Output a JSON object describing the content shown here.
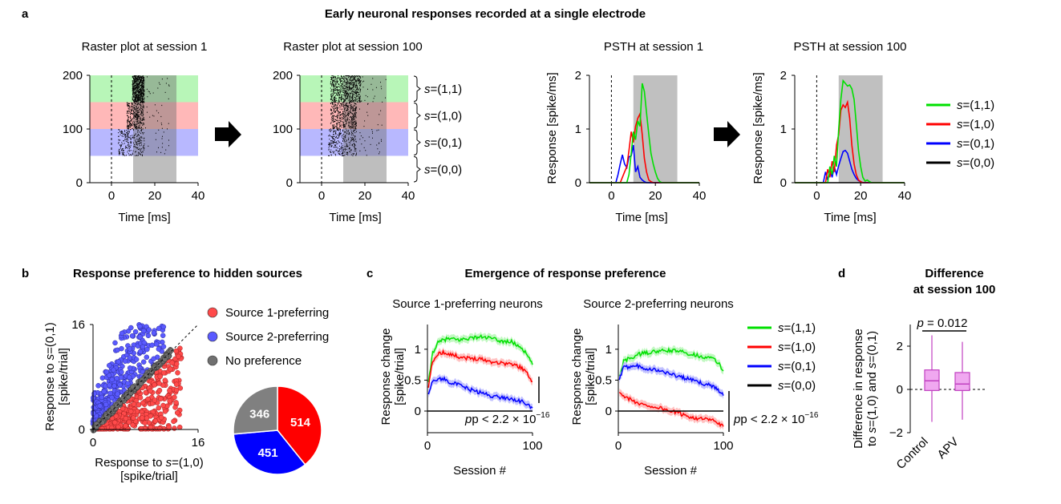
{
  "figure": {
    "panel_a": {
      "label": "a",
      "title": "Early neuronal responses recorded at a single electrode",
      "arrow_icon": "right-arrow-icon",
      "state_brackets": [
        "s=(1,1)",
        "s=(1,0)",
        "s=(0,1)",
        "s=(0,0)"
      ],
      "legend": [
        {
          "label": "s=(1,1)",
          "color": "#00e000"
        },
        {
          "label": "s=(1,0)",
          "color": "#ff0000"
        },
        {
          "label": "s=(0,1)",
          "color": "#0000ff"
        },
        {
          "label": "s=(0,0)",
          "color": "#000000"
        }
      ]
    },
    "panel_b": {
      "label": "b",
      "title": "Response preference to hidden sources",
      "legend": [
        {
          "label": "Source 1-preferring",
          "color": "#ff4a4a"
        },
        {
          "label": "Source 2-preferring",
          "color": "#5a5aff"
        },
        {
          "label": "No preference",
          "color": "#707070"
        }
      ]
    },
    "panel_c": {
      "label": "c",
      "title": "Emergence of response preference",
      "pvalue_text": "p < 2.2 × 10",
      "pvalue_exp": "−16",
      "legend": [
        {
          "label": "s=(1,1)",
          "color": "#00e000"
        },
        {
          "label": "s=(1,0)",
          "color": "#ff0000"
        },
        {
          "label": "s=(0,1)",
          "color": "#0000ff"
        },
        {
          "label": "s=(0,0)",
          "color": "#000000"
        }
      ]
    },
    "panel_d": {
      "label": "d",
      "title_line1": "Difference",
      "title_line2": "at session 100",
      "pvalue": "p = 0.012"
    }
  },
  "chart_data": [
    {
      "id": "raster1",
      "type": "scatter",
      "title": "Raster plot at session 1",
      "xlabel": "Time [ms]",
      "ylabel": "",
      "xlim": [
        -10,
        40
      ],
      "ylim": [
        0,
        200
      ],
      "xticks": [
        0,
        20,
        40
      ],
      "yticks": [
        0,
        100,
        200
      ],
      "stim_onset_ms": 0,
      "shaded_window_ms": [
        10,
        30
      ],
      "trial_bands": [
        {
          "state": "s=(1,1)",
          "trials": [
            150,
            200
          ],
          "color": "#00e000"
        },
        {
          "state": "s=(1,0)",
          "trials": [
            100,
            150
          ],
          "color": "#ff0000"
        },
        {
          "state": "s=(0,1)",
          "trials": [
            50,
            100
          ],
          "color": "#0000ff"
        },
        {
          "state": "s=(0,0)",
          "trials": [
            0,
            50
          ],
          "color": "#ffffff"
        }
      ],
      "spike_clusters": [
        {
          "trials": [
            150,
            200
          ],
          "t": [
            9.5,
            15
          ],
          "density": 0.9
        },
        {
          "trials": [
            100,
            150
          ],
          "t": [
            7,
            15
          ],
          "density": 0.45
        },
        {
          "trials": [
            50,
            100
          ],
          "t": [
            3,
            15
          ],
          "density": 0.3
        }
      ]
    },
    {
      "id": "raster100",
      "type": "scatter",
      "title": "Raster plot at session 100",
      "xlabel": "Time [ms]",
      "ylabel": "",
      "xlim": [
        -10,
        40
      ],
      "ylim": [
        0,
        200
      ],
      "xticks": [
        0,
        20,
        40
      ],
      "yticks": [
        0,
        100,
        200
      ],
      "stim_onset_ms": 0,
      "shaded_window_ms": [
        10,
        30
      ],
      "trial_bands": [
        {
          "state": "s=(1,1)",
          "trials": [
            150,
            200
          ],
          "color": "#00e000"
        },
        {
          "state": "s=(1,0)",
          "trials": [
            100,
            150
          ],
          "color": "#ff0000"
        },
        {
          "state": "s=(0,1)",
          "trials": [
            50,
            100
          ],
          "color": "#0000ff"
        },
        {
          "state": "s=(0,0)",
          "trials": [
            0,
            50
          ],
          "color": "#ffffff"
        }
      ],
      "spike_clusters": [
        {
          "trials": [
            150,
            200
          ],
          "t": [
            4,
            18
          ],
          "density": 0.9
        },
        {
          "trials": [
            100,
            150
          ],
          "t": [
            4,
            16
          ],
          "density": 0.6
        },
        {
          "trials": [
            50,
            100
          ],
          "t": [
            3,
            16
          ],
          "density": 0.35
        }
      ]
    },
    {
      "id": "psth1",
      "type": "line",
      "title": "PSTH at session 1",
      "xlabel": "Time [ms]",
      "ylabel": "Response [spike/ms]",
      "xlim": [
        -10,
        40
      ],
      "ylim": [
        0,
        2
      ],
      "xticks": [
        0,
        20,
        40
      ],
      "yticks": [
        0,
        1,
        2
      ],
      "stim_onset_ms": 0,
      "shaded_window_ms": [
        10,
        30
      ],
      "series": [
        {
          "name": "s=(0,0)",
          "color": "#000000",
          "x": [
            -10,
            0,
            10,
            20,
            30,
            40
          ],
          "y": [
            0,
            0,
            0,
            0,
            0,
            0
          ]
        },
        {
          "name": "s=(0,1)",
          "color": "#0000ff",
          "x": [
            -10,
            2,
            3,
            4,
            5,
            6,
            7,
            8,
            9,
            10,
            11,
            12,
            13,
            14,
            15,
            16,
            17,
            40
          ],
          "y": [
            0,
            0,
            0.15,
            0.35,
            0.52,
            0.35,
            0.28,
            0.48,
            0.5,
            0.7,
            0.2,
            0.3,
            0.1,
            0.05,
            0.02,
            0,
            0,
            0
          ]
        },
        {
          "name": "s=(1,0)",
          "color": "#ff0000",
          "x": [
            -10,
            4,
            5,
            6,
            7,
            8,
            9,
            10,
            11,
            12,
            13,
            14,
            15,
            16,
            17,
            18,
            19,
            40
          ],
          "y": [
            0,
            0,
            0.1,
            0.2,
            0.3,
            0.6,
            0.95,
            0.75,
            1.05,
            1.2,
            1.28,
            0.9,
            0.45,
            0.2,
            0.05,
            0.02,
            0,
            0
          ]
        },
        {
          "name": "s=(1,1)",
          "color": "#00e000",
          "x": [
            -10,
            7,
            8,
            9,
            10,
            11,
            12,
            13,
            14,
            15,
            16,
            17,
            18,
            19,
            20,
            21,
            22,
            23,
            40
          ],
          "y": [
            0,
            0,
            0.15,
            0.55,
            0.95,
            0.8,
            1.15,
            1.05,
            1.85,
            1.7,
            1.3,
            0.9,
            0.55,
            0.35,
            0.2,
            0.08,
            0.02,
            0,
            0
          ]
        }
      ]
    },
    {
      "id": "psth100",
      "type": "line",
      "title": "PSTH at session 100",
      "xlabel": "Time [ms]",
      "ylabel": "Response [spike/ms]",
      "xlim": [
        -10,
        40
      ],
      "ylim": [
        0,
        2
      ],
      "xticks": [
        0,
        20,
        40
      ],
      "yticks": [
        0,
        1,
        2
      ],
      "stim_onset_ms": 0,
      "shaded_window_ms": [
        10,
        30
      ],
      "series": [
        {
          "name": "s=(0,0)",
          "color": "#000000",
          "x": [
            -10,
            0,
            10,
            20,
            30,
            40
          ],
          "y": [
            0,
            0,
            0,
            0,
            0,
            0
          ]
        },
        {
          "name": "s=(0,1)",
          "color": "#0000ff",
          "x": [
            -10,
            3,
            4,
            5,
            6,
            7,
            8,
            9,
            10,
            11,
            12,
            13,
            14,
            15,
            16,
            17,
            18,
            19,
            20,
            21,
            22,
            40
          ],
          "y": [
            0,
            0,
            0.2,
            0.05,
            0.25,
            0.1,
            0.3,
            0.15,
            0.32,
            0.45,
            0.58,
            0.6,
            0.55,
            0.4,
            0.25,
            0.15,
            0.08,
            0.04,
            0.02,
            0,
            0,
            0
          ]
        },
        {
          "name": "s=(1,0)",
          "color": "#ff0000",
          "x": [
            -10,
            4,
            5,
            6,
            7,
            8,
            9,
            10,
            11,
            12,
            13,
            14,
            15,
            16,
            17,
            18,
            19,
            20,
            21,
            40
          ],
          "y": [
            0,
            0,
            0.25,
            0.1,
            0.4,
            0.2,
            0.7,
            0.9,
            1.35,
            1.45,
            1.4,
            1.5,
            1.2,
            0.7,
            0.35,
            0.15,
            0.05,
            0.02,
            0,
            0
          ]
        },
        {
          "name": "s=(1,1)",
          "color": "#00e000",
          "x": [
            -10,
            5,
            6,
            7,
            8,
            9,
            10,
            11,
            12,
            13,
            14,
            15,
            16,
            17,
            18,
            19,
            20,
            21,
            22,
            23,
            24,
            25,
            40
          ],
          "y": [
            0,
            0,
            0.3,
            0.15,
            0.5,
            0.3,
            1.0,
            1.55,
            1.9,
            1.85,
            1.8,
            1.82,
            1.75,
            1.55,
            1.1,
            0.6,
            0.3,
            0.1,
            0.03,
            0.05,
            0.02,
            0,
            0
          ]
        }
      ]
    },
    {
      "id": "scatter_b",
      "type": "scatter",
      "title": "",
      "xlabel": "Response to s=(1,0) [spike/trial]",
      "ylabel": "Response to s=(0,1) [spike/trial]",
      "xlim": [
        0,
        16
      ],
      "ylim": [
        0,
        16
      ],
      "xticks": [
        0,
        16
      ],
      "yticks": [
        0,
        16
      ],
      "diagonal": "y = x (dashed)",
      "groups": [
        {
          "name": "Source 1-preferring",
          "count": 514,
          "color": "#ff4a4a"
        },
        {
          "name": "Source 2-preferring",
          "count": 451,
          "color": "#5a5aff"
        },
        {
          "name": "No preference",
          "count": 346,
          "color": "#707070"
        }
      ]
    },
    {
      "id": "pie_b",
      "type": "pie",
      "slices": [
        {
          "label": "514",
          "value": 514,
          "color": "#ff0000"
        },
        {
          "label": "451",
          "value": 451,
          "color": "#0000ff"
        },
        {
          "label": "346",
          "value": 346,
          "color": "#808080"
        }
      ]
    },
    {
      "id": "c1",
      "type": "line",
      "title": "Source 1-preferring neurons",
      "xlabel": "Session #",
      "ylabel": "Response change [spike/trial]",
      "xlim": [
        0,
        100
      ],
      "ylim": [
        -0.35,
        1.4
      ],
      "xticks": [
        0,
        100
      ],
      "yticks": [
        0,
        0.5,
        1
      ],
      "series": [
        {
          "name": "s=(1,1)",
          "color": "#00e000",
          "x": [
            1,
            5,
            10,
            15,
            20,
            30,
            40,
            50,
            60,
            70,
            80,
            90,
            95,
            100
          ],
          "y": [
            0.45,
            0.95,
            1.1,
            1.15,
            1.17,
            1.15,
            1.18,
            1.2,
            1.18,
            1.13,
            1.12,
            1.02,
            0.9,
            0.75
          ]
        },
        {
          "name": "s=(1,0)",
          "color": "#ff0000",
          "x": [
            1,
            5,
            10,
            15,
            20,
            30,
            40,
            50,
            60,
            70,
            80,
            90,
            95,
            100
          ],
          "y": [
            0.4,
            0.8,
            0.93,
            0.95,
            0.93,
            0.88,
            0.85,
            0.85,
            0.8,
            0.78,
            0.76,
            0.7,
            0.6,
            0.48
          ]
        },
        {
          "name": "s=(0,1)",
          "color": "#0000ff",
          "x": [
            1,
            5,
            10,
            15,
            20,
            30,
            40,
            50,
            60,
            70,
            80,
            90,
            95,
            100
          ],
          "y": [
            0.3,
            0.48,
            0.52,
            0.52,
            0.48,
            0.42,
            0.35,
            0.3,
            0.25,
            0.22,
            0.2,
            0.15,
            0.1,
            0.05
          ]
        },
        {
          "name": "s=(0,0)",
          "color": "#000000",
          "x": [
            0,
            100
          ],
          "y": [
            0,
            0
          ]
        }
      ]
    },
    {
      "id": "c2",
      "type": "line",
      "title": "Source 2-preferring neurons",
      "xlabel": "Session #",
      "ylabel": "Response change [spike/trial]",
      "xlim": [
        0,
        100
      ],
      "ylim": [
        -0.35,
        1.4
      ],
      "xticks": [
        0,
        100
      ],
      "yticks": [
        0,
        0.5,
        1
      ],
      "series": [
        {
          "name": "s=(1,1)",
          "color": "#00e000",
          "x": [
            1,
            5,
            10,
            15,
            20,
            30,
            40,
            50,
            60,
            70,
            80,
            90,
            95,
            100
          ],
          "y": [
            0.55,
            0.8,
            0.85,
            0.88,
            0.92,
            0.95,
            0.97,
            0.98,
            0.96,
            0.92,
            0.88,
            0.85,
            0.78,
            0.65
          ]
        },
        {
          "name": "s=(1,0)",
          "color": "#ff0000",
          "x": [
            1,
            5,
            10,
            15,
            20,
            30,
            40,
            50,
            60,
            70,
            80,
            90,
            95,
            100
          ],
          "y": [
            0.3,
            0.25,
            0.2,
            0.15,
            0.12,
            0.08,
            0.05,
            0.0,
            -0.05,
            -0.1,
            -0.13,
            -0.15,
            -0.2,
            -0.25
          ]
        },
        {
          "name": "s=(0,1)",
          "color": "#0000ff",
          "x": [
            1,
            5,
            10,
            15,
            20,
            30,
            40,
            50,
            60,
            70,
            80,
            90,
            95,
            100
          ],
          "y": [
            0.5,
            0.7,
            0.72,
            0.75,
            0.72,
            0.68,
            0.65,
            0.6,
            0.55,
            0.5,
            0.45,
            0.4,
            0.35,
            0.25
          ]
        },
        {
          "name": "s=(0,0)",
          "color": "#000000",
          "x": [
            0,
            100
          ],
          "y": [
            0,
            0
          ]
        }
      ]
    },
    {
      "id": "box_d",
      "type": "box",
      "title": "",
      "ylabel": "Difference in response to s=(1,0) and s=(0,1)",
      "ylim": [
        -2,
        3
      ],
      "yticks": [
        -2,
        0,
        2
      ],
      "categories": [
        "Control",
        "APV"
      ],
      "boxes": [
        {
          "name": "Control",
          "min": -1.5,
          "q1": -0.05,
          "median": 0.4,
          "q3": 0.9,
          "max": 2.5
        },
        {
          "name": "APV",
          "min": -1.4,
          "q1": -0.05,
          "median": 0.25,
          "q3": 0.78,
          "max": 2.2
        }
      ]
    }
  ]
}
